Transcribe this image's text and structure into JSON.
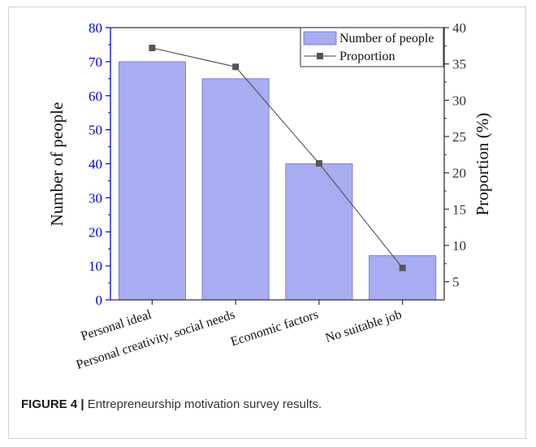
{
  "chart_data": {
    "type": "bar+line",
    "categories": [
      "Personal ideal",
      "Personal creativity, social needs",
      "Economic factors",
      "No suitable job"
    ],
    "series": [
      {
        "name": "Number of people",
        "type": "bar",
        "axis": "left",
        "values": [
          70,
          65,
          40,
          13
        ]
      },
      {
        "name": "Proportion",
        "type": "line",
        "axis": "right",
        "values": [
          37.2,
          34.6,
          21.3,
          6.9
        ]
      }
    ],
    "y_left": {
      "label": "Number of people",
      "min": 0,
      "max": 80,
      "ticks": [
        "0",
        "10",
        "20",
        "30",
        "40",
        "50",
        "60",
        "70",
        "80"
      ]
    },
    "y_right": {
      "label": "Proportion (%)",
      "min": 2.5,
      "max": 40,
      "ticks": [
        "5",
        "10",
        "15",
        "20",
        "25",
        "30",
        "35",
        "40"
      ]
    },
    "legend_position": "top-right",
    "grid": false,
    "colors": {
      "bar_fill": "#a8acf0",
      "bar_stroke": "#6a6fe0",
      "line": "#444444",
      "marker": "#555555",
      "left_axis": "#0000ee",
      "right_axis": "#333333"
    }
  },
  "caption": {
    "label": "FIGURE 4 |",
    "text": " Entrepreneurship motivation survey results."
  }
}
